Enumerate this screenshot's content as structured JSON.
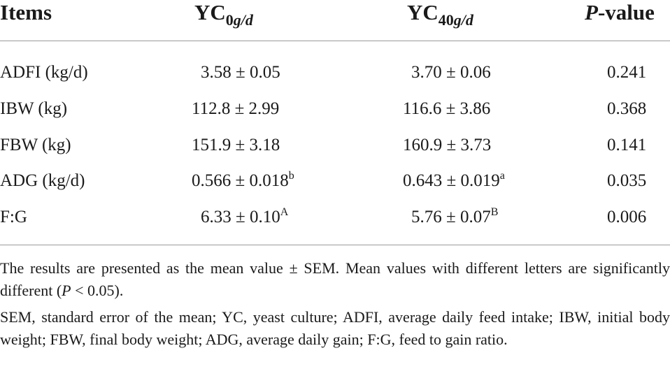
{
  "table": {
    "headers": {
      "items": "Items",
      "yc0_base": "YC",
      "yc0_sub_num": "0",
      "yc0_sub_unit": "g/d",
      "yc40_base": "YC",
      "yc40_sub_num": "40",
      "yc40_sub_unit": "g/d",
      "p_italic": "P",
      "p_rest": "-value"
    },
    "rows": [
      {
        "item": "ADFI (kg/d)",
        "yc0": "3.58 ± 0.05",
        "yc0_sup": "",
        "yc40": "3.70 ± 0.06",
        "yc40_sup": "",
        "p": "0.241"
      },
      {
        "item": "IBW (kg)",
        "yc0": "112.8 ± 2.99",
        "yc0_sup": "",
        "yc40": "116.6 ± 3.86",
        "yc40_sup": "",
        "p": "0.368"
      },
      {
        "item": "FBW (kg)",
        "yc0": "151.9 ± 3.18",
        "yc0_sup": "",
        "yc40": "160.9 ± 3.73",
        "yc40_sup": "",
        "p": "0.141"
      },
      {
        "item": "ADG (kg/d)",
        "yc0": "0.566 ± 0.018",
        "yc0_sup": "b",
        "yc40": "0.643 ± 0.019",
        "yc40_sup": "a",
        "p": "0.035"
      },
      {
        "item": "F:G",
        "yc0": "6.33 ± 0.10",
        "yc0_sup": "A",
        "yc40": "5.76 ± 0.07",
        "yc40_sup": "B",
        "p": "0.006"
      }
    ]
  },
  "footnotes": {
    "note1_text": "The results are presented as the mean value ± SEM. Mean values with different letters are significantly different (",
    "note1_p": "P",
    "note1_end": " < 0.05).",
    "note2": "SEM, standard error of the mean; YC, yeast culture; ADFI, average daily feed intake; IBW, initial body weight; FBW, final body weight; ADG, average daily gain; F:G, feed to gain ratio."
  }
}
